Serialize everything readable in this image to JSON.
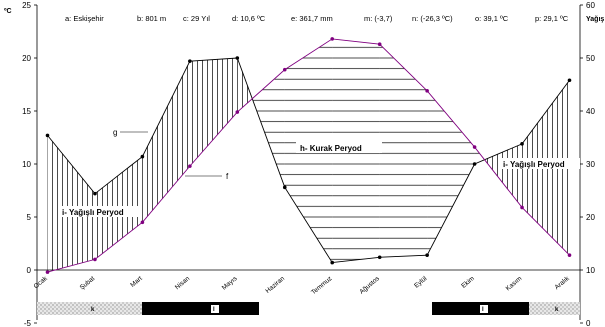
{
  "info": {
    "a": "a: Eskişehir",
    "b": "b: 801 m",
    "c": "c:  29 Yıl",
    "d": "d: 10,6 ºC",
    "e": "e:  361,7 mm",
    "m": "m: (-3,7)",
    "n": "n: (-26,3 ºC)",
    "o": "o: 39,1 ºC",
    "p": "p: 29,1 ºC"
  },
  "units": {
    "left": "ºC",
    "right": "Yağış"
  },
  "annotations": {
    "wet1": "i- Yağışlı Peryod",
    "dry": "h- Kurak Peryod",
    "wet2": "i- Yağışlı Peryod",
    "g": "g",
    "f": "f"
  },
  "bands": {
    "k1": "k",
    "l1": "l",
    "l2": "l",
    "k2": "k"
  },
  "colors": {
    "precipitation": "#000000",
    "temperature": "#800080",
    "hatch": "#000000"
  },
  "chart_data": {
    "type": "line",
    "categories": [
      "Ocak",
      "Şubat",
      "Mart",
      "Nisan",
      "Mayıs",
      "Haziran",
      "Temmuz",
      "Ağustos",
      "Eylül",
      "Ekim",
      "Kasım",
      "Aralık"
    ],
    "series": [
      {
        "axis": "left",
        "values": [
          12.7,
          7.2,
          10.7,
          19.7,
          20.0,
          7.8,
          0.7,
          1.2,
          1.4,
          10.0,
          11.9,
          17.9
        ]
      },
      {
        "axis": "left",
        "values": [
          -0.2,
          1.0,
          4.5,
          9.8,
          14.9,
          18.9,
          21.8,
          21.3,
          16.9,
          11.6,
          5.9,
          1.4
        ]
      }
    ],
    "ylim_left": [
      -5,
      25
    ],
    "ylim_right": [
      0,
      60
    ],
    "yticks_left": [
      -5,
      0,
      5,
      10,
      15,
      20,
      25
    ],
    "yticks_right": [
      0,
      10,
      20,
      30,
      40,
      50,
      60
    ],
    "grid": false
  }
}
